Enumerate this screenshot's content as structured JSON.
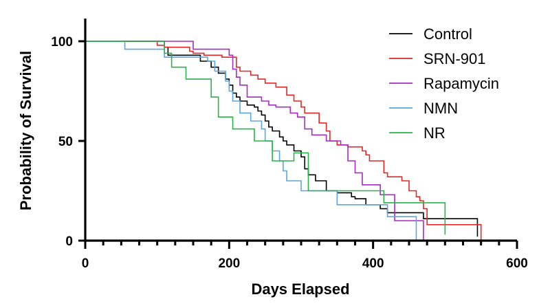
{
  "chart_data": {
    "type": "line",
    "step": true,
    "title": "",
    "xlabel": "Days Elapsed",
    "ylabel": "Probability of Survival",
    "xlim": [
      0,
      600
    ],
    "ylim": [
      0,
      100
    ],
    "xticks": [
      0,
      200,
      400,
      600
    ],
    "xtick_labels": [
      "0",
      "200",
      "400",
      "600"
    ],
    "yticks": [
      0,
      50,
      100
    ],
    "ytick_labels": [
      "0",
      "50",
      "100"
    ],
    "grid": false,
    "legend_position": "top-right",
    "series": [
      {
        "name": "Control",
        "color": "#000000",
        "x": [
          0,
          110,
          115,
          160,
          175,
          185,
          195,
          200,
          205,
          210,
          215,
          225,
          235,
          240,
          245,
          250,
          255,
          260,
          270,
          275,
          280,
          290,
          300,
          305,
          310,
          320,
          335,
          350,
          370,
          375,
          390,
          410,
          420,
          470,
          545
        ],
        "y": [
          100,
          97,
          93,
          90,
          87,
          84,
          81,
          78,
          74,
          72,
          70,
          68,
          67,
          65,
          63,
          60,
          57,
          55,
          52,
          50,
          48,
          45,
          42,
          36,
          33,
          30,
          25,
          24,
          22,
          21,
          18,
          16,
          14,
          11,
          2
        ]
      },
      {
        "name": "SRN-901",
        "color": "#e32626",
        "x": [
          0,
          100,
          110,
          145,
          150,
          165,
          190,
          210,
          215,
          230,
          240,
          250,
          265,
          280,
          290,
          300,
          305,
          325,
          335,
          340,
          350,
          365,
          385,
          390,
          395,
          415,
          420,
          440,
          450,
          460,
          465,
          470,
          475,
          550
        ],
        "y": [
          100,
          98,
          97,
          95,
          94,
          93,
          92,
          87,
          85,
          83,
          81,
          79,
          77,
          73,
          70,
          67,
          64,
          59,
          55,
          50,
          48,
          47,
          45,
          43,
          40,
          34,
          32,
          30,
          25,
          22,
          20,
          16,
          8,
          0
        ]
      },
      {
        "name": "Rapamycin",
        "color": "#a52bc2",
        "x": [
          0,
          100,
          150,
          200,
          205,
          210,
          215,
          225,
          245,
          255,
          265,
          285,
          295,
          305,
          315,
          335,
          355,
          365,
          375,
          385,
          410,
          430,
          470
        ],
        "y": [
          100,
          100,
          96,
          93,
          86,
          82,
          78,
          72,
          70,
          68,
          67,
          64,
          62,
          56,
          53,
          50,
          48,
          40,
          34,
          28,
          23,
          10,
          0
        ]
      },
      {
        "name": "NMN",
        "color": "#5aa6df",
        "x": [
          0,
          55,
          110,
          170,
          180,
          195,
          200,
          205,
          215,
          230,
          245,
          250,
          260,
          270,
          275,
          280,
          300,
          350,
          420,
          460
        ],
        "y": [
          100,
          96,
          92,
          90,
          85,
          80,
          75,
          70,
          64,
          60,
          56,
          50,
          45,
          40,
          35,
          30,
          25,
          18,
          12,
          0
        ]
      },
      {
        "name": "NR",
        "color": "#28b34a",
        "x": [
          0,
          110,
          120,
          140,
          175,
          185,
          205,
          235,
          260,
          290,
          310,
          345,
          415,
          500
        ],
        "y": [
          100,
          94,
          87,
          81,
          72,
          62,
          56,
          50,
          40,
          44,
          25,
          25,
          19,
          3
        ]
      }
    ]
  }
}
